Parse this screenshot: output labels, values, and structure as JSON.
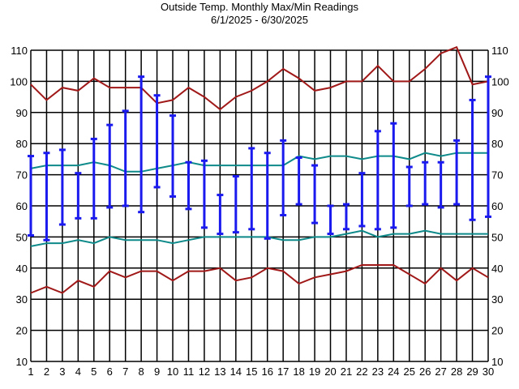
{
  "chart_data": {
    "type": "line",
    "title": "Outside Temp. Monthly Max/Min Readings",
    "subtitle": "6/1/2025 - 6/30/2025",
    "x": [
      1,
      2,
      3,
      4,
      5,
      6,
      7,
      8,
      9,
      10,
      11,
      12,
      13,
      14,
      15,
      16,
      17,
      18,
      19,
      20,
      21,
      22,
      23,
      24,
      25,
      26,
      27,
      28,
      29,
      30
    ],
    "ylim": [
      10,
      110
    ],
    "yticks": [
      10,
      20,
      30,
      40,
      50,
      60,
      70,
      80,
      90,
      100,
      110
    ],
    "grid": true,
    "colors": {
      "record": "#a01818",
      "average": "#0f8a8a",
      "daily": "#1a1aee",
      "grid": "#000000"
    },
    "series": [
      {
        "role": "record_high",
        "values": [
          99,
          94,
          98,
          97,
          101,
          98,
          98,
          98,
          93,
          94,
          98,
          95,
          91,
          95,
          97,
          100,
          104,
          101,
          97,
          98,
          100,
          100,
          105,
          100,
          100,
          104,
          109,
          111,
          99,
          100
        ]
      },
      {
        "role": "average_high",
        "values": [
          72,
          73,
          73,
          73,
          74,
          73,
          71,
          71,
          72,
          73,
          74,
          73,
          73,
          73,
          73,
          73,
          73,
          76,
          75,
          76,
          76,
          75,
          76,
          76,
          75,
          77,
          76,
          77,
          77,
          77
        ]
      },
      {
        "role": "average_low",
        "values": [
          47,
          48,
          48,
          49,
          48,
          50,
          49,
          49,
          49,
          48,
          49,
          50,
          50,
          50,
          50,
          50,
          49,
          49,
          50,
          50,
          51,
          52,
          50,
          51,
          51,
          52,
          51,
          51,
          51,
          51
        ]
      },
      {
        "role": "record_low",
        "values": [
          32,
          34,
          32,
          36,
          34,
          39,
          37,
          39,
          39,
          36,
          39,
          39,
          40,
          36,
          37,
          40,
          39,
          35,
          37,
          38,
          39,
          41,
          41,
          41,
          38,
          35,
          40,
          36,
          40,
          37
        ]
      },
      {
        "role": "daily_range",
        "high": [
          76,
          77,
          78,
          70.5,
          81.5,
          86,
          90.5,
          101.5,
          95.5,
          89,
          74,
          74.5,
          63.5,
          69.5,
          78.5,
          77,
          81,
          75.5,
          73,
          60,
          60.5,
          70.5,
          84,
          86.5,
          72.5,
          74,
          74,
          81,
          94,
          101.5
        ],
        "low": [
          50.5,
          49,
          54,
          56,
          56,
          59.5,
          60,
          58,
          66,
          63,
          59,
          53,
          51,
          51.5,
          52.5,
          49.5,
          57,
          60.5,
          54.5,
          51,
          52.5,
          53.5,
          52.5,
          53,
          60,
          60.5,
          59.5,
          60.5,
          55.5,
          56.5
        ]
      }
    ]
  }
}
